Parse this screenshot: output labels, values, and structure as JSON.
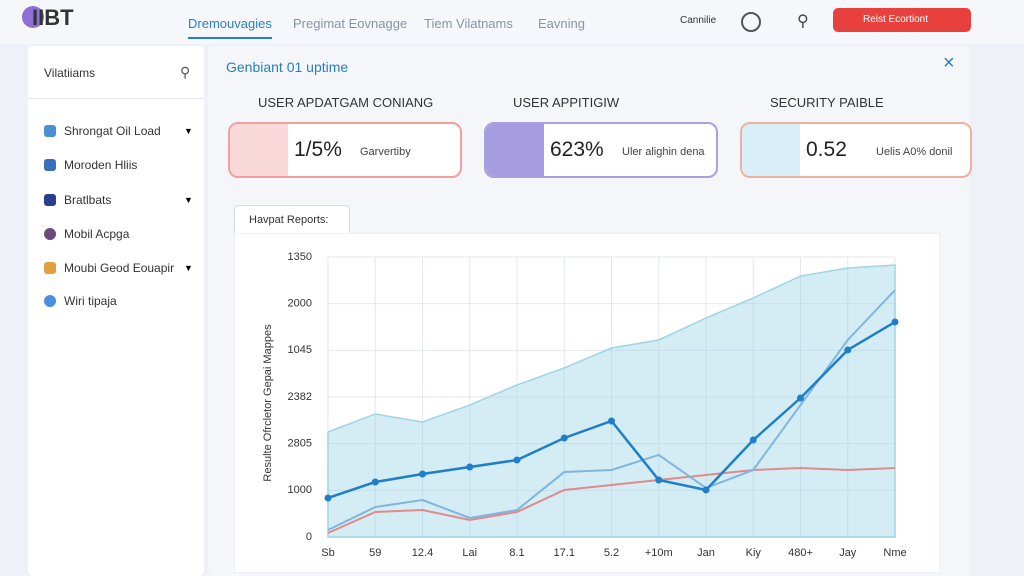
{
  "header": {
    "logo": "IIBT",
    "tabs": [
      "Dremouvagies",
      "Pregimat Eovnagge",
      "Tiem Vilatnams",
      "Eavning"
    ],
    "user": "Cannilie",
    "button": "Reist Ecortiont"
  },
  "sidebar": {
    "title": "Vilatiiams",
    "items": [
      "Shrongat Oil Load",
      "Moroden Hliis",
      "Bratlbats",
      "Mobil Acpga",
      "Moubi Geod Eouapir",
      "Wiri tipaja"
    ]
  },
  "panel": {
    "title": "Genbiant 01 uptime",
    "cards": [
      {
        "title": "USER APDATGAM CONIANG",
        "value": "1/5%",
        "note": "Garvertiby"
      },
      {
        "title": "USER APPITIGIW",
        "value": "623%",
        "note": "Uler alighin dena"
      },
      {
        "title": "SECURITY PAIBLE",
        "value": "0.52",
        "note": "Uelis A0% donil"
      }
    ],
    "tab": "Havpat Reports:"
  },
  "chart_data": {
    "type": "line",
    "y_label": "Resulte Ofrcletor Gepai Mappes",
    "categories": [
      "Sb",
      "59",
      "12.4",
      "Lai",
      "8.1",
      "17.1",
      "5.2",
      "+10m",
      "Jan",
      "Kiy",
      "480+",
      "Jay",
      "Nme"
    ],
    "ylim": [
      0,
      3000
    ],
    "yticks": [
      0,
      {
        "value": 500,
        "label": "1000"
      },
      {
        "value": 1000,
        "label": "2805"
      },
      {
        "value": 1500,
        "label": "2382"
      },
      {
        "value": 2000,
        "label": "1045"
      },
      {
        "value": 2500,
        "label": "2000"
      },
      {
        "value": 3000,
        "label": "1350"
      }
    ],
    "grid": true,
    "series": [
      {
        "color": "#9fd4e4",
        "area": true,
        "values": [
          1125,
          1318,
          1232,
          1414,
          1629,
          1811,
          2025,
          2111,
          2346,
          2561,
          2796,
          2882,
          2914
        ]
      },
      {
        "color": "#e08a8a",
        "values": [
          43,
          268,
          289,
          182,
          268,
          504,
          557,
          611,
          664,
          718,
          739,
          718,
          739
        ]
      },
      {
        "color": "#7fb6e0",
        "values": [
          75,
          321,
          396,
          204,
          289,
          696,
          718,
          879,
          525,
          718,
          1414,
          2111,
          2646
        ]
      },
      {
        "color": "#1f7fc8",
        "markers": true,
        "values": [
          418,
          589,
          675,
          750,
          825,
          1061,
          1243,
          611,
          504,
          1039,
          1489,
          2004,
          2304
        ]
      }
    ]
  }
}
